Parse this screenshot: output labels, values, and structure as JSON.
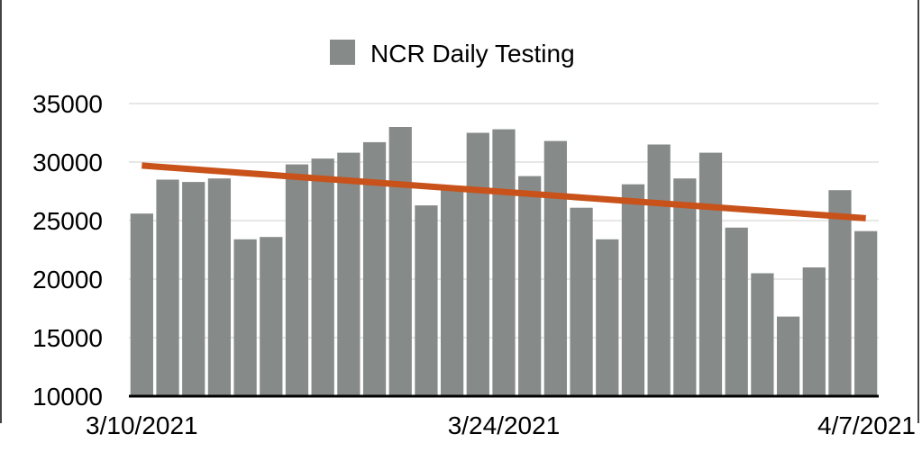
{
  "chart_data": {
    "type": "bar",
    "legend": {
      "label": "NCR Daily Testing",
      "placement": "top-center"
    },
    "x_ticks": [
      "3/10/2021",
      "3/24/2021",
      "4/7/2021"
    ],
    "categories": [
      "3/10/2021",
      "3/11/2021",
      "3/12/2021",
      "3/13/2021",
      "3/14/2021",
      "3/15/2021",
      "3/16/2021",
      "3/17/2021",
      "3/18/2021",
      "3/19/2021",
      "3/20/2021",
      "3/21/2021",
      "3/22/2021",
      "3/23/2021",
      "3/24/2021",
      "3/25/2021",
      "3/26/2021",
      "3/27/2021",
      "3/28/2021",
      "3/29/2021",
      "3/30/2021",
      "3/31/2021",
      "4/1/2021",
      "4/2/2021",
      "4/3/2021",
      "4/4/2021",
      "4/5/2021",
      "4/6/2021",
      "4/7/2021"
    ],
    "series": [
      {
        "name": "NCR Daily Testing",
        "values": [
          25600,
          28500,
          28300,
          28600,
          23400,
          23600,
          29800,
          30300,
          30800,
          31700,
          33000,
          26300,
          27700,
          32500,
          32800,
          28800,
          31800,
          26100,
          23400,
          28100,
          31500,
          28600,
          30800,
          24400,
          20500,
          16800,
          21000,
          27600,
          24100
        ]
      }
    ],
    "trendline": {
      "start": 29700,
      "end": 25200
    },
    "y_ticks": [
      10000,
      15000,
      20000,
      25000,
      30000,
      35000
    ],
    "ylim": [
      10000,
      35000
    ],
    "grid": true,
    "colors": {
      "bar": "#868a89",
      "trendline": "#c8521a",
      "grid": "#cfcfcf",
      "axis": "#000000"
    }
  }
}
